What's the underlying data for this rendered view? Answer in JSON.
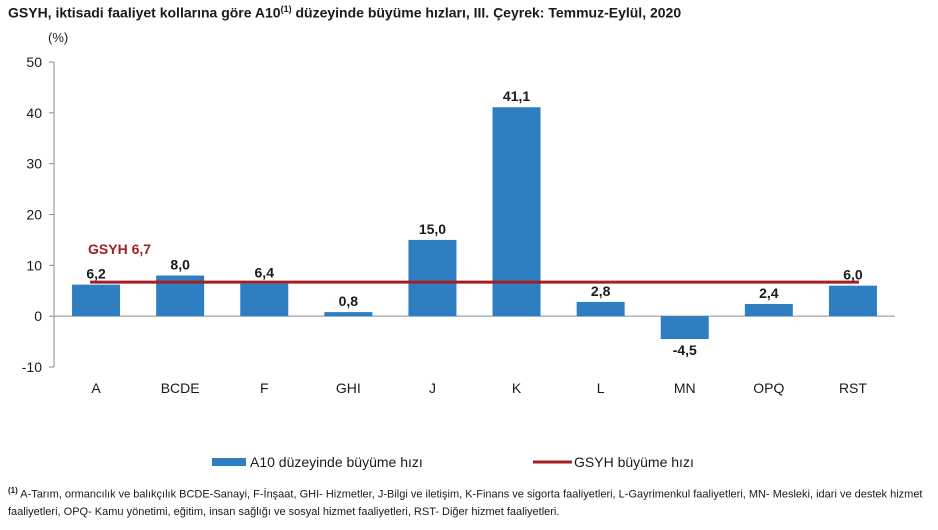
{
  "title": {
    "main": "GSYH, iktisadi faaliyet kollarına göre A10",
    "sup": "(1)",
    "rest": " düzeyinde büyüme hızları, III. Çeyrek: Temmuz-Eylül, 2020"
  },
  "chart_data": {
    "type": "bar",
    "unit_label": "(%)",
    "categories": [
      "A",
      "BCDE",
      "F",
      "GHI",
      "J",
      "K",
      "L",
      "MN",
      "OPQ",
      "RST"
    ],
    "series": [
      {
        "name": "A10 düzeyinde  büyüme hızı",
        "type": "bar",
        "values": [
          6.2,
          8.0,
          6.4,
          0.8,
          15.0,
          41.1,
          2.8,
          -4.5,
          2.4,
          6.0
        ]
      },
      {
        "name": "GSYH büyüme hızı",
        "type": "line",
        "value": 6.7
      }
    ],
    "value_labels": [
      "6,2",
      "8,0",
      "6,4",
      "0,8",
      "15,0",
      "41,1",
      "2,8",
      "-4,5",
      "2,4",
      "6,0"
    ],
    "line_label": "GSYH  6,7",
    "ylim": [
      -10,
      50
    ],
    "yticks": [
      -10,
      0,
      10,
      20,
      30,
      40,
      50
    ],
    "grid": false,
    "legend_position": "bottom",
    "colors": {
      "bar": "#2e7fc2",
      "line": "#a31f23"
    }
  },
  "footnote": {
    "sup": "(1)",
    "text": " A-Tarım, ormancılık ve balıkçılık BCDE-Sanayi, F-İnşaat, GHI- Hizmetler, J-Bilgi ve iletişim, K-Finans ve sigorta faaliyetleri, L-Gayrimenkul faaliyetleri, MN- Mesleki, idari ve destek hizmet faaliyetleri, OPQ- Kamu yönetimi, eğitim, insan sağlığı ve sosyal hizmet faaliyetleri, RST- Diğer hizmet faaliyetleri."
  }
}
